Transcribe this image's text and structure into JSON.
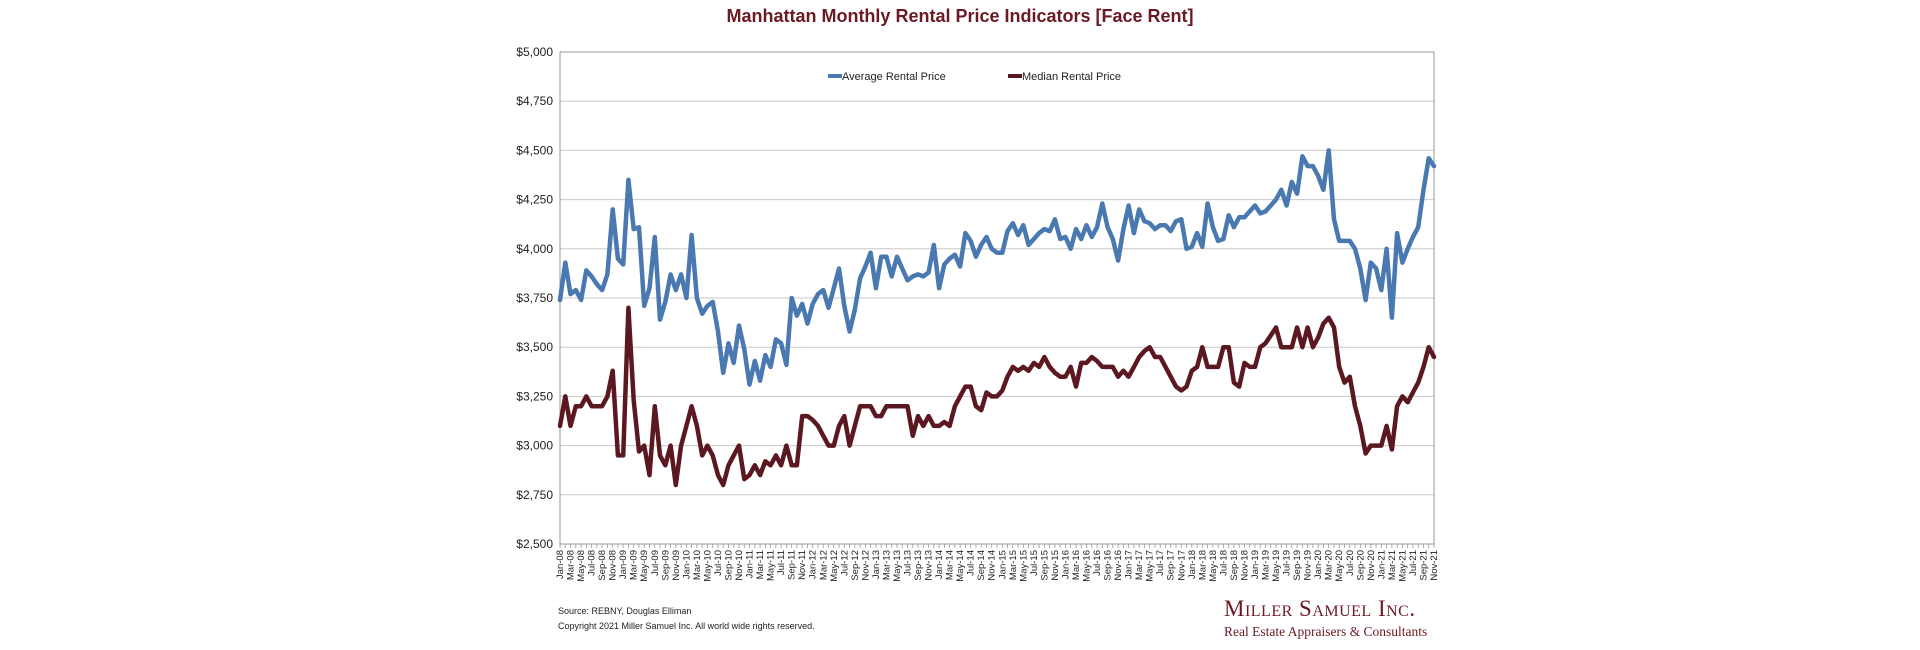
{
  "chart_data": {
    "type": "line",
    "title": "Manhattan Monthly Rental Price Indicators [Face Rent]",
    "ylim": [
      2500,
      5000
    ],
    "yticks": [
      2500,
      2750,
      3000,
      3250,
      3500,
      3750,
      4000,
      4250,
      4500,
      4750,
      5000
    ],
    "ytick_labels": [
      "$2,500",
      "$2,750",
      "$3,000",
      "$3,250",
      "$3,500",
      "$3,750",
      "$4,000",
      "$4,250",
      "$4,500",
      "$4,750",
      "$5,000"
    ],
    "grid": true,
    "legend_position": "top-center",
    "x": [
      "Jan-08",
      "Feb-08",
      "Mar-08",
      "Apr-08",
      "May-08",
      "Jun-08",
      "Jul-08",
      "Aug-08",
      "Sep-08",
      "Oct-08",
      "Nov-08",
      "Dec-08",
      "Jan-09",
      "Feb-09",
      "Mar-09",
      "Apr-09",
      "May-09",
      "Jun-09",
      "Jul-09",
      "Aug-09",
      "Sep-09",
      "Oct-09",
      "Nov-09",
      "Dec-09",
      "Jan-10",
      "Feb-10",
      "Mar-10",
      "Apr-10",
      "May-10",
      "Jun-10",
      "Jul-10",
      "Aug-10",
      "Sep-10",
      "Oct-10",
      "Nov-10",
      "Dec-10",
      "Jan-11",
      "Feb-11",
      "Mar-11",
      "Apr-11",
      "May-11",
      "Jun-11",
      "Jul-11",
      "Aug-11",
      "Sep-11",
      "Oct-11",
      "Nov-11",
      "Dec-11",
      "Jan-12",
      "Feb-12",
      "Mar-12",
      "Apr-12",
      "May-12",
      "Jun-12",
      "Jul-12",
      "Aug-12",
      "Sep-12",
      "Oct-12",
      "Nov-12",
      "Dec-12",
      "Jan-13",
      "Feb-13",
      "Mar-13",
      "Apr-13",
      "May-13",
      "Jun-13",
      "Jul-13",
      "Aug-13",
      "Sep-13",
      "Oct-13",
      "Nov-13",
      "Dec-13",
      "Jan-14",
      "Feb-14",
      "Mar-14",
      "Apr-14",
      "May-14",
      "Jun-14",
      "Jul-14",
      "Aug-14",
      "Sep-14",
      "Oct-14",
      "Nov-14",
      "Dec-14",
      "Jan-15",
      "Feb-15",
      "Mar-15",
      "Apr-15",
      "May-15",
      "Jun-15",
      "Jul-15",
      "Aug-15",
      "Sep-15",
      "Oct-15",
      "Nov-15",
      "Dec-15",
      "Jan-16",
      "Feb-16",
      "Mar-16",
      "Apr-16",
      "May-16",
      "Jun-16",
      "Jul-16",
      "Aug-16",
      "Sep-16",
      "Oct-16",
      "Nov-16",
      "Dec-16",
      "Jan-17",
      "Feb-17",
      "Mar-17",
      "Apr-17",
      "May-17",
      "Jun-17",
      "Jul-17",
      "Aug-17",
      "Sep-17",
      "Oct-17",
      "Nov-17",
      "Dec-17",
      "Jan-18",
      "Feb-18",
      "Mar-18",
      "Apr-18",
      "May-18",
      "Jun-18",
      "Jul-18",
      "Aug-18",
      "Sep-18",
      "Oct-18",
      "Nov-18",
      "Dec-18",
      "Jan-19",
      "Feb-19",
      "Mar-19",
      "Apr-19",
      "May-19",
      "Jun-19",
      "Jul-19",
      "Aug-19",
      "Sep-19",
      "Oct-19",
      "Nov-19",
      "Dec-19",
      "Jan-20",
      "Feb-20",
      "Mar-20",
      "Apr-20",
      "May-20",
      "Jun-20",
      "Jul-20",
      "Aug-20",
      "Sep-20",
      "Oct-20",
      "Nov-20",
      "Dec-20",
      "Jan-21",
      "Feb-21",
      "Mar-21",
      "Apr-21",
      "May-21",
      "Jun-21",
      "Jul-21",
      "Aug-21",
      "Sep-21",
      "Oct-21",
      "Nov-21"
    ],
    "xtick_labels": [
      "Jan-08",
      "Mar-08",
      "May-08",
      "Jul-08",
      "Sep-08",
      "Nov-08",
      "Jan-09",
      "Mar-09",
      "May-09",
      "Jul-09",
      "Sep-09",
      "Nov-09",
      "Jan-10",
      "Mar-10",
      "May-10",
      "Jul-10",
      "Sep-10",
      "Nov-10",
      "Jan-11",
      "Mar-11",
      "May-11",
      "Jul-11",
      "Sep-11",
      "Nov-11",
      "Jan-12",
      "Mar-12",
      "May-12",
      "Jul-12",
      "Sep-12",
      "Nov-12",
      "Jan-13",
      "Mar-13",
      "May-13",
      "Jul-13",
      "Sep-13",
      "Nov-13",
      "Jan-14",
      "Mar-14",
      "May-14",
      "Jul-14",
      "Sep-14",
      "Nov-14",
      "Jan-15",
      "Mar-15",
      "May-15",
      "Jul-15",
      "Sep-15",
      "Nov-15",
      "Jan-16",
      "Mar-16",
      "May-16",
      "Jul-16",
      "Sep-16",
      "Nov-16",
      "Jan-17",
      "Mar-17",
      "May-17",
      "Jul-17",
      "Sep-17",
      "Nov-17",
      "Jan-18",
      "Mar-18",
      "May-18",
      "Jul-18",
      "Sep-18",
      "Nov-18",
      "Jan-19",
      "Mar-19",
      "May-19",
      "Jul-19",
      "Sep-19",
      "Nov-19",
      "Jan-20",
      "Mar-20",
      "May-20",
      "Jul-20",
      "Sep-20",
      "Nov-20",
      "Jan-21",
      "Mar-21",
      "May-21",
      "Jul-21",
      "Sep-21",
      "Nov-21"
    ],
    "series": [
      {
        "name": "Average Rental Price",
        "color": "#4a78b0",
        "values": [
          3740,
          3930,
          3770,
          3790,
          3740,
          3890,
          3860,
          3820,
          3790,
          3870,
          4200,
          3950,
          3920,
          4350,
          4100,
          4110,
          3710,
          3800,
          4060,
          3640,
          3730,
          3870,
          3790,
          3870,
          3750,
          4070,
          3750,
          3670,
          3710,
          3730,
          3580,
          3370,
          3520,
          3420,
          3610,
          3490,
          3310,
          3430,
          3330,
          3460,
          3400,
          3540,
          3520,
          3410,
          3750,
          3660,
          3720,
          3620,
          3720,
          3770,
          3790,
          3700,
          3800,
          3900,
          3710,
          3580,
          3690,
          3850,
          3910,
          3980,
          3800,
          3960,
          3960,
          3860,
          3960,
          3900,
          3840,
          3860,
          3870,
          3860,
          3880,
          4020,
          3800,
          3920,
          3950,
          3970,
          3910,
          4080,
          4040,
          3960,
          4020,
          4060,
          4000,
          3980,
          3980,
          4090,
          4130,
          4070,
          4120,
          4020,
          4050,
          4080,
          4100,
          4090,
          4150,
          4050,
          4060,
          4000,
          4100,
          4050,
          4120,
          4060,
          4110,
          4230,
          4110,
          4050,
          3940,
          4100,
          4220,
          4080,
          4200,
          4140,
          4130,
          4100,
          4120,
          4120,
          4090,
          4140,
          4150,
          4000,
          4010,
          4080,
          4010,
          4230,
          4110,
          4040,
          4050,
          4170,
          4110,
          4160,
          4160,
          4190,
          4220,
          4180,
          4190,
          4220,
          4250,
          4300,
          4220,
          4340,
          4280,
          4470,
          4420,
          4420,
          4370,
          4300,
          4500,
          4150,
          4040,
          4040,
          4040,
          4000,
          3900,
          3740,
          3930,
          3900,
          3790,
          4000,
          3650,
          4080,
          3930,
          4000,
          4060,
          4110,
          4300,
          4460,
          4420
        ]
      },
      {
        "name": "Median Rental Price",
        "color": "#5c1820",
        "values": [
          3100,
          3250,
          3100,
          3200,
          3200,
          3250,
          3200,
          3200,
          3200,
          3250,
          3380,
          2950,
          2950,
          3700,
          3230,
          2970,
          3000,
          2850,
          3200,
          2950,
          2900,
          3000,
          2800,
          3000,
          3100,
          3200,
          3100,
          2950,
          3000,
          2950,
          2850,
          2800,
          2900,
          2950,
          3000,
          2830,
          2850,
          2900,
          2850,
          2920,
          2900,
          2950,
          2900,
          3000,
          2900,
          2900,
          3150,
          3150,
          3130,
          3100,
          3050,
          3000,
          3000,
          3100,
          3150,
          3000,
          3100,
          3200,
          3200,
          3200,
          3150,
          3150,
          3200,
          3200,
          3200,
          3200,
          3200,
          3050,
          3150,
          3100,
          3150,
          3100,
          3100,
          3120,
          3100,
          3200,
          3250,
          3300,
          3300,
          3200,
          3180,
          3270,
          3250,
          3250,
          3280,
          3350,
          3400,
          3380,
          3400,
          3380,
          3420,
          3400,
          3450,
          3400,
          3370,
          3350,
          3350,
          3400,
          3300,
          3420,
          3420,
          3450,
          3430,
          3400,
          3400,
          3400,
          3350,
          3380,
          3350,
          3400,
          3450,
          3480,
          3500,
          3450,
          3450,
          3400,
          3350,
          3300,
          3280,
          3300,
          3380,
          3400,
          3500,
          3400,
          3400,
          3400,
          3500,
          3500,
          3320,
          3300,
          3420,
          3400,
          3400,
          3500,
          3520,
          3560,
          3600,
          3500,
          3500,
          3500,
          3600,
          3500,
          3600,
          3500,
          3550,
          3620,
          3650,
          3600,
          3400,
          3320,
          3350,
          3200,
          3100,
          2960,
          3000,
          3000,
          3000,
          3100,
          2980,
          3200,
          3250,
          3220,
          3270,
          3320,
          3400,
          3500,
          3450
        ]
      }
    ]
  },
  "source_note": "Source: REBNY, Douglas Elliman",
  "copyright_note": "Copyright 2021 Miller Samuel Inc.  All world wide rights reserved.",
  "brand": {
    "name": "Miller Samuel Inc.",
    "tagline": "Real Estate Appraisers & Consultants"
  }
}
